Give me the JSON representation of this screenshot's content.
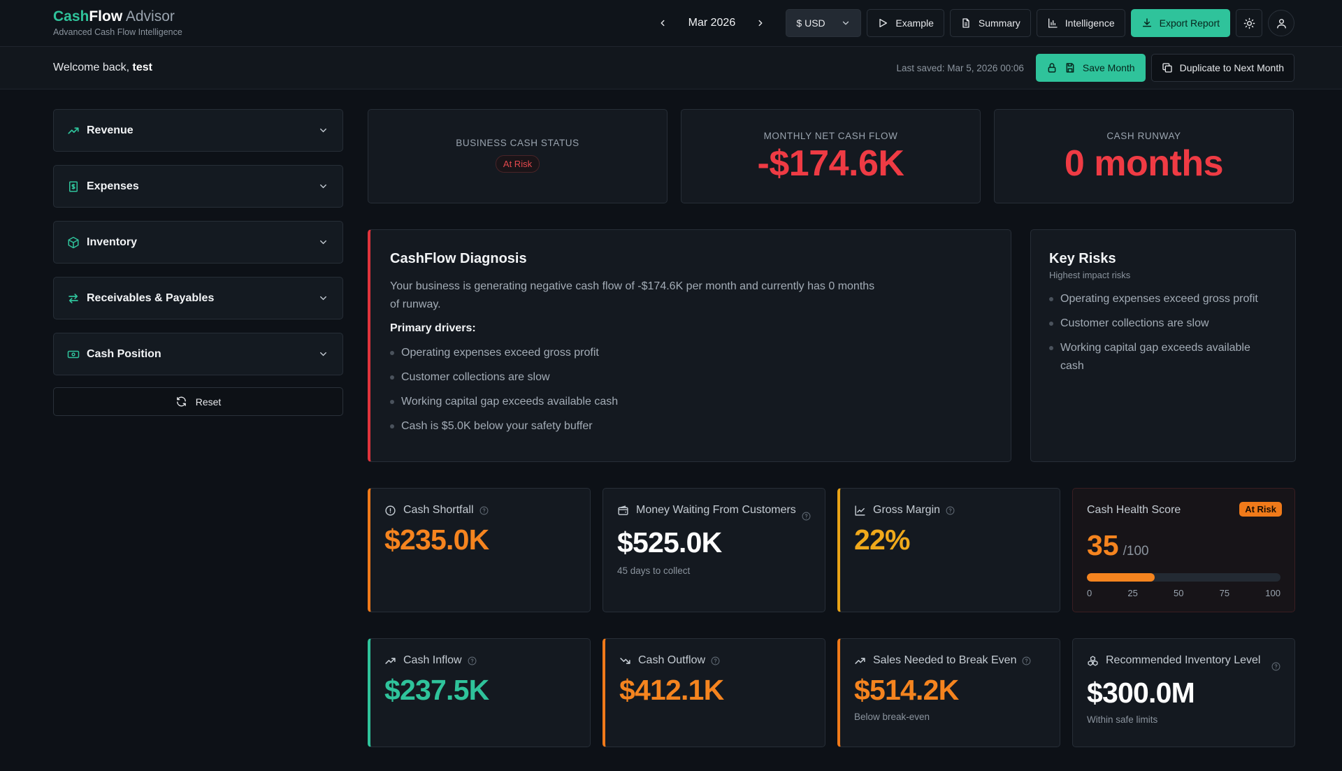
{
  "brand": {
    "part1": "Cash",
    "part2": "Flow",
    "part3": " Advisor",
    "subtitle": "Advanced Cash Flow Intelligence"
  },
  "header": {
    "month": "Mar 2026",
    "currency": "$ USD",
    "example_label": "Example",
    "summary_label": "Summary",
    "intelligence_label": "Intelligence",
    "export_label": "Export Report"
  },
  "subbar": {
    "welcome_prefix": "Welcome back, ",
    "user": "test",
    "last_saved": "Last saved: Mar 5, 2026 00:06",
    "save_label": "Save Month",
    "duplicate_label": "Duplicate to Next Month"
  },
  "sidebar": {
    "items": [
      {
        "label": "Revenue",
        "icon": "trending-up-icon"
      },
      {
        "label": "Expenses",
        "icon": "receipt-icon"
      },
      {
        "label": "Inventory",
        "icon": "box-icon"
      },
      {
        "label": "Receivables & Payables",
        "icon": "arrows-icon"
      },
      {
        "label": "Cash Position",
        "icon": "banknote-icon"
      }
    ],
    "reset_label": "Reset"
  },
  "stats": {
    "status": {
      "title": "BUSINESS CASH STATUS",
      "badge": "At Risk"
    },
    "net_flow": {
      "title": "MONTHLY NET CASH FLOW",
      "value": "-$174.6K"
    },
    "runway": {
      "title": "CASH RUNWAY",
      "value": "0 months"
    }
  },
  "diagnosis": {
    "title": "CashFlow Diagnosis",
    "text": "Your business is generating negative cash flow of -$174.6K per month and currently has 0 months of runway.",
    "drivers_title": "Primary drivers:",
    "drivers": [
      "Operating expenses exceed gross profit",
      "Customer collections are slow",
      "Working capital gap exceeds available cash",
      "Cash is $5.0K below your safety buffer"
    ]
  },
  "risks": {
    "title": "Key Risks",
    "subtitle": "Highest impact risks",
    "items": [
      "Operating expenses exceed gross profit",
      "Customer collections are slow",
      "Working capital gap exceeds available cash"
    ]
  },
  "metrics": {
    "shortfall": {
      "label": "Cash Shortfall",
      "value": "$235.0K"
    },
    "waiting": {
      "label": "Money Waiting From Customers",
      "value": "$525.0K",
      "sub": "45 days to collect"
    },
    "margin": {
      "label": "Gross Margin",
      "value": "22%"
    },
    "health": {
      "label": "Cash Health Score",
      "badge": "At Risk",
      "score": "35",
      "max": "/100",
      "score_value": 35,
      "ticks": [
        "0",
        "25",
        "50",
        "75",
        "100"
      ]
    },
    "inflow": {
      "label": "Cash Inflow",
      "value": "$237.5K"
    },
    "outflow": {
      "label": "Cash Outflow",
      "value": "$412.1K"
    },
    "breakeven": {
      "label": "Sales Needed to Break Even",
      "value": "$514.2K",
      "sub": "Below break-even"
    },
    "inventory": {
      "label": "Recommended Inventory Level",
      "value": "$300.0M",
      "sub": "Within safe limits"
    }
  },
  "colors": {
    "accent": "#2fc39b",
    "danger": "#ef3b44",
    "warning": "#f5841f",
    "yellow": "#f0a91b"
  }
}
